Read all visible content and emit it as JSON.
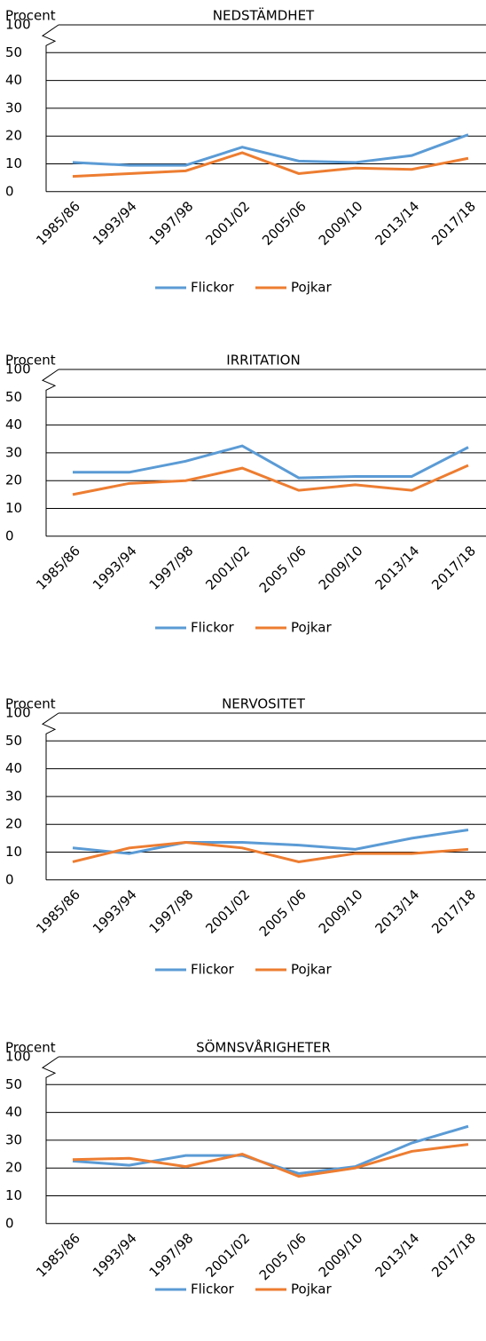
{
  "chart_data": [
    {
      "type": "line",
      "title": "NEDSTÄMDHET",
      "ylabel": "Procent",
      "categories": [
        "1985/86",
        "1993/94",
        "1997/98",
        "2001/02",
        "2005/06",
        "2009/10",
        "2013/14",
        "2017/18"
      ],
      "series": [
        {
          "name": "Flickor",
          "color": "#5b9bd5",
          "values": [
            10.5,
            9.5,
            9.5,
            16,
            11,
            10.5,
            13,
            20.5
          ]
        },
        {
          "name": "Pojkar",
          "color": "#ed7d31",
          "values": [
            5.5,
            6.5,
            7.5,
            14,
            6.5,
            8.5,
            8,
            12
          ]
        }
      ],
      "ylim": [
        0,
        100
      ],
      "yticks": [
        0,
        10,
        20,
        30,
        40,
        50,
        100
      ],
      "y_break": true,
      "grid": true,
      "legend": "bottom"
    },
    {
      "type": "line",
      "title": "IRRITATION",
      "ylabel": "Procent",
      "categories": [
        "1985/86",
        "1993/94",
        "1997/98",
        "2001/02",
        "2005 /06",
        "2009/10",
        "2013/14",
        "2017/18"
      ],
      "series": [
        {
          "name": "Flickor",
          "color": "#5b9bd5",
          "values": [
            23,
            23,
            27,
            32.5,
            21,
            21.5,
            21.5,
            32
          ]
        },
        {
          "name": "Pojkar",
          "color": "#ed7d31",
          "values": [
            15,
            19,
            20,
            24.5,
            16.5,
            18.5,
            16.5,
            25.5
          ]
        }
      ],
      "ylim": [
        0,
        100
      ],
      "yticks": [
        0,
        10,
        20,
        30,
        40,
        50,
        100
      ],
      "y_break": true,
      "grid": true,
      "legend": "bottom"
    },
    {
      "type": "line",
      "title": "NERVOSITET",
      "ylabel": "Procent",
      "categories": [
        "1985/86",
        "1993/94",
        "1997/98",
        "2001/02",
        "2005 /06",
        "2009/10",
        "2013/14",
        "2017/18"
      ],
      "series": [
        {
          "name": "Flickor",
          "color": "#5b9bd5",
          "values": [
            11.5,
            9.5,
            13.5,
            13.5,
            12.5,
            11,
            15,
            18
          ]
        },
        {
          "name": "Pojkar",
          "color": "#ed7d31",
          "values": [
            6.5,
            11.5,
            13.5,
            11.5,
            6.5,
            9.5,
            9.5,
            11
          ]
        }
      ],
      "ylim": [
        0,
        100
      ],
      "yticks": [
        0,
        10,
        20,
        30,
        40,
        50,
        100
      ],
      "y_break": true,
      "grid": true,
      "legend": "bottom"
    },
    {
      "type": "line",
      "title": "SÖMNSVÅRIGHETER",
      "ylabel": "Procent",
      "categories": [
        "1985/86",
        "1993/94",
        "1997/98",
        "2001/02",
        "2005 /06",
        "2009/10",
        "2013/14",
        "2017/18"
      ],
      "series": [
        {
          "name": "Flickor",
          "color": "#5b9bd5",
          "values": [
            22.5,
            21,
            24.5,
            24.5,
            18,
            20.5,
            29,
            35
          ]
        },
        {
          "name": "Pojkar",
          "color": "#ed7d31",
          "values": [
            23,
            23.5,
            20.5,
            25,
            17,
            20,
            26,
            28.5
          ]
        }
      ],
      "ylim": [
        0,
        100
      ],
      "yticks": [
        0,
        10,
        20,
        30,
        40,
        50,
        100
      ],
      "y_break": true,
      "grid": true,
      "legend": "bottom"
    }
  ]
}
